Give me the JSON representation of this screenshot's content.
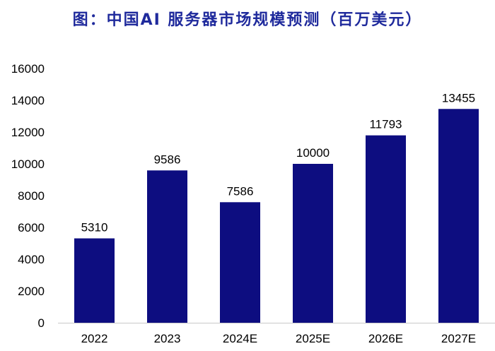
{
  "title": "图：中国AI 服务器市场规模预测（百万美元）",
  "colors": {
    "bar": "#0d0d80",
    "axis": "#c8c8c8",
    "title": "#1f2a9c"
  },
  "chart_data": {
    "type": "bar",
    "title": "图：中国AI 服务器市场规模预测（百万美元）",
    "categories": [
      "2022",
      "2023",
      "2024E",
      "2025E",
      "2026E",
      "2027E"
    ],
    "values": [
      5310,
      9586,
      7586,
      10000,
      11793,
      13455
    ],
    "ylim": [
      0,
      16000
    ],
    "yticks": [
      0,
      2000,
      4000,
      6000,
      8000,
      10000,
      12000,
      14000,
      16000
    ],
    "xlabel": "",
    "ylabel": "",
    "grid": false,
    "data_labels": true
  }
}
